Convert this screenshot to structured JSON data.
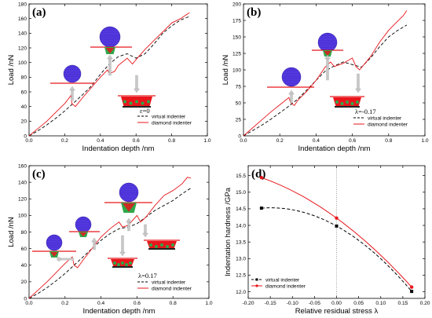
{
  "chart_data": [
    {
      "type": "line",
      "panel_label": "(a)",
      "xlabel": "Indentation depth  /nm",
      "ylabel": "Load  /nN",
      "xlim": [
        0,
        1.0
      ],
      "ylim": [
        0,
        180
      ],
      "xticks": [
        "0.0",
        "0.2",
        "0.4",
        "0.6",
        "0.8",
        "1.0"
      ],
      "yticks": [
        "0",
        "20",
        "40",
        "60",
        "80",
        "100",
        "120",
        "140",
        "160",
        "180"
      ],
      "annotation": "ε=0",
      "legend": "bottom-right",
      "series": [
        {
          "name": "virtual indenter",
          "style": "dashed",
          "color": "#000000",
          "x": [
            0,
            0.05,
            0.1,
            0.15,
            0.2,
            0.25,
            0.3,
            0.35,
            0.4,
            0.45,
            0.5,
            0.55,
            0.6,
            0.65,
            0.7,
            0.75,
            0.8,
            0.85,
            0.9
          ],
          "y": [
            0,
            7,
            15,
            24,
            34,
            45,
            56,
            68,
            84,
            98,
            108,
            112,
            106,
            112,
            125,
            140,
            150,
            158,
            163
          ]
        },
        {
          "name": "diamond indenter",
          "style": "solid",
          "color": "#e8161b",
          "x": [
            0,
            0.05,
            0.1,
            0.15,
            0.2,
            0.235,
            0.24,
            0.26,
            0.3,
            0.35,
            0.4,
            0.44,
            0.45,
            0.48,
            0.5,
            0.55,
            0.58,
            0.6,
            0.65,
            0.7,
            0.75,
            0.8,
            0.85,
            0.88,
            0.9
          ],
          "y": [
            0,
            10,
            20,
            32,
            44,
            55,
            44,
            40,
            52,
            66,
            80,
            90,
            85,
            88,
            96,
            106,
            98,
            104,
            118,
            130,
            142,
            154,
            160,
            165,
            168
          ]
        }
      ]
    },
    {
      "type": "line",
      "panel_label": "(b)",
      "xlabel": "Indentation depth  /nm",
      "ylabel": "Load  /nN",
      "xlim": [
        0,
        1.0
      ],
      "ylim": [
        0,
        200
      ],
      "xticks": [
        "0.0",
        "0.2",
        "0.4",
        "0.6",
        "0.8",
        "1.0"
      ],
      "yticks": [
        "0",
        "25",
        "50",
        "75",
        "100",
        "125",
        "150",
        "175",
        "200"
      ],
      "annotation": "λ=-0.17",
      "legend": "bottom-right",
      "series": [
        {
          "name": "virtual indenter",
          "style": "dashed",
          "color": "#000000",
          "x": [
            0,
            0.05,
            0.1,
            0.15,
            0.2,
            0.25,
            0.3,
            0.35,
            0.4,
            0.45,
            0.5,
            0.55,
            0.6,
            0.65,
            0.7,
            0.75,
            0.8,
            0.85,
            0.9
          ],
          "y": [
            0,
            8,
            16,
            25,
            35,
            45,
            56,
            70,
            84,
            98,
            106,
            112,
            108,
            104,
            118,
            135,
            150,
            160,
            168
          ]
        },
        {
          "name": "diamond indenter",
          "style": "solid",
          "color": "#e8161b",
          "x": [
            0,
            0.05,
            0.1,
            0.15,
            0.2,
            0.25,
            0.26,
            0.28,
            0.3,
            0.35,
            0.4,
            0.45,
            0.48,
            0.5,
            0.55,
            0.6,
            0.62,
            0.64,
            0.7,
            0.75,
            0.8,
            0.85,
            0.88,
            0.9
          ],
          "y": [
            0,
            12,
            24,
            36,
            47,
            58,
            50,
            46,
            54,
            68,
            84,
            104,
            112,
            105,
            110,
            118,
            105,
            100,
            120,
            142,
            160,
            174,
            182,
            190
          ]
        }
      ]
    },
    {
      "type": "line",
      "panel_label": "(c)",
      "xlabel": "Indentation depth  /nm",
      "ylabel": "Load  /nN",
      "xlim": [
        0,
        1.0
      ],
      "ylim": [
        0,
        160
      ],
      "xticks": [
        "0.0",
        "0.2",
        "0.4",
        "0.6",
        "0.8",
        "1.0"
      ],
      "yticks": [
        "0",
        "20",
        "40",
        "60",
        "80",
        "100",
        "120",
        "140",
        "160"
      ],
      "annotation": "λ=0.17",
      "legend": "bottom-right",
      "series": [
        {
          "name": "virtual indenter",
          "style": "dashed",
          "color": "#000000",
          "x": [
            0,
            0.05,
            0.1,
            0.15,
            0.2,
            0.25,
            0.3,
            0.35,
            0.4,
            0.45,
            0.5,
            0.55,
            0.6,
            0.65,
            0.7,
            0.75,
            0.8,
            0.85,
            0.9
          ],
          "y": [
            0,
            6,
            13,
            21,
            30,
            40,
            50,
            60,
            70,
            78,
            84,
            86,
            90,
            98,
            106,
            112,
            118,
            126,
            133
          ]
        },
        {
          "name": "diamond indenter",
          "style": "solid",
          "color": "#e8161b",
          "x": [
            0,
            0.05,
            0.1,
            0.15,
            0.2,
            0.24,
            0.25,
            0.27,
            0.3,
            0.35,
            0.4,
            0.45,
            0.5,
            0.52,
            0.55,
            0.6,
            0.62,
            0.65,
            0.7,
            0.75,
            0.8,
            0.85,
            0.88,
            0.9
          ],
          "y": [
            0,
            10,
            20,
            31,
            42,
            50,
            40,
            37,
            46,
            60,
            74,
            84,
            92,
            86,
            88,
            100,
            92,
            98,
            112,
            124,
            130,
            138,
            146,
            145
          ]
        }
      ]
    },
    {
      "type": "line",
      "panel_label": "(d)",
      "xlabel": "Relative residual stress  λ",
      "ylabel": "Indentation hardness  /GPa",
      "xlim": [
        -0.2,
        0.2
      ],
      "ylim": [
        11.8,
        15.8
      ],
      "xticks": [
        "-0.20",
        "-0.15",
        "-0.10",
        "-0.05",
        "0.00",
        "0.05",
        "0.10",
        "0.15",
        "0.20"
      ],
      "yticks": [
        "12.0",
        "12.5",
        "13.0",
        "13.5",
        "14.0",
        "14.5",
        "15.0",
        "15.5"
      ],
      "legend": "bottom-left",
      "series": [
        {
          "name": "virtual indenter",
          "style": "dashed",
          "marker": "square",
          "color": "#000000",
          "x": [
            -0.17,
            0.0,
            0.17
          ],
          "y": [
            14.52,
            13.98,
            12.01
          ]
        },
        {
          "name": "diamond indenter",
          "style": "solid",
          "marker": "circle",
          "color": "#e8161b",
          "x": [
            -0.17,
            0.0,
            0.17
          ],
          "y": [
            15.44,
            14.22,
            12.14
          ]
        }
      ]
    }
  ],
  "colors": {
    "atom_sphere": "#4a2fd6",
    "surface_line": "#e8161b",
    "crystal": "#2ea84a",
    "deformation": "#e8161b",
    "arrow": "#c8c8c8"
  }
}
